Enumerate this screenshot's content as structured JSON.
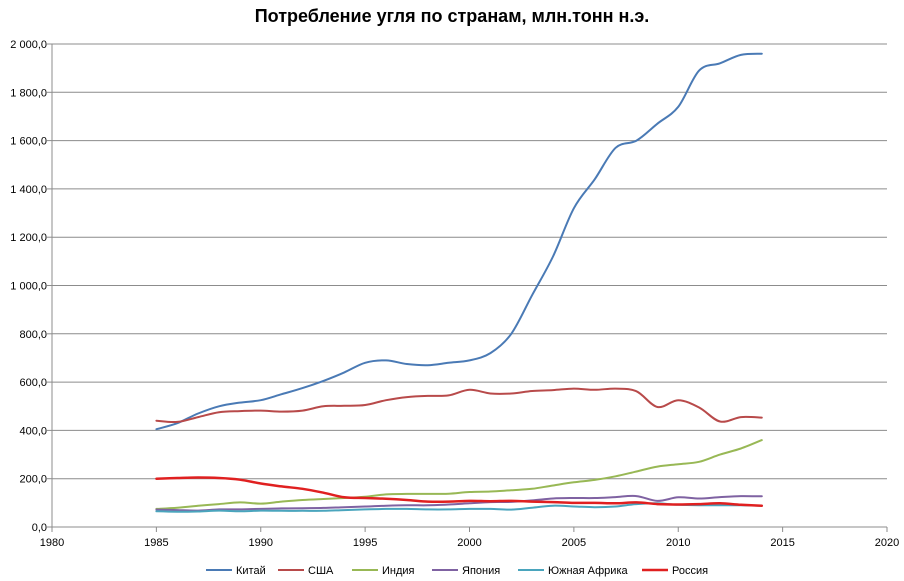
{
  "chart_data": {
    "type": "line",
    "title": "Потребление угля по странам, млн.тонн н.э.",
    "xlabel": "",
    "ylabel": "",
    "xlim": [
      1980,
      2020
    ],
    "ylim": [
      0,
      2000
    ],
    "x_ticks": [
      "1980",
      "1985",
      "1990",
      "1995",
      "2000",
      "2005",
      "2010",
      "2015",
      "2020"
    ],
    "y_ticks": [
      "0,0",
      "200,0",
      "400,0",
      "600,0",
      "800,0",
      "1 000,0",
      "1 200,0",
      "1 400,0",
      "1 600,0",
      "1 800,0",
      "2 000,0"
    ],
    "grid": "horizontal",
    "legend_position": "bottom",
    "x": [
      1985,
      1986,
      1987,
      1988,
      1989,
      1990,
      1991,
      1992,
      1993,
      1994,
      1995,
      1996,
      1997,
      1998,
      1999,
      2000,
      2001,
      2002,
      2003,
      2004,
      2005,
      2006,
      2007,
      2008,
      2009,
      2010,
      2011,
      2012,
      2013,
      2014
    ],
    "series": [
      {
        "name": "Китай",
        "color": "#4a7ab5",
        "width": 2,
        "values": [
          405,
          430,
          470,
          500,
          515,
          525,
          550,
          575,
          605,
          640,
          680,
          690,
          675,
          670,
          680,
          690,
          720,
          800,
          960,
          1120,
          1320,
          1440,
          1570,
          1600,
          1670,
          1740,
          1890,
          1920,
          1955,
          1960
        ]
      },
      {
        "name": "США",
        "color": "#b84a4a",
        "width": 2,
        "values": [
          440,
          435,
          455,
          475,
          480,
          482,
          478,
          482,
          500,
          502,
          505,
          525,
          538,
          543,
          545,
          568,
          553,
          553,
          563,
          567,
          573,
          568,
          573,
          562,
          497,
          525,
          495,
          437,
          455,
          453
        ]
      },
      {
        "name": "Индия",
        "color": "#98b855",
        "width": 2,
        "values": [
          75,
          80,
          88,
          95,
          102,
          97,
          105,
          112,
          116,
          120,
          125,
          135,
          137,
          137,
          138,
          145,
          147,
          152,
          158,
          172,
          185,
          195,
          210,
          230,
          250,
          260,
          270,
          300,
          325,
          360
        ]
      },
      {
        "name": "Япония",
        "color": "#7f62a2",
        "width": 2,
        "values": [
          72,
          70,
          68,
          73,
          73,
          75,
          77,
          78,
          79,
          82,
          85,
          88,
          90,
          90,
          93,
          98,
          103,
          104,
          110,
          118,
          120,
          120,
          124,
          128,
          108,
          123,
          118,
          124,
          128,
          127
        ]
      },
      {
        "name": "Южная Африка",
        "color": "#4aa5bd",
        "width": 2,
        "values": [
          65,
          63,
          64,
          68,
          65,
          68,
          67,
          67,
          67,
          70,
          73,
          75,
          75,
          73,
          73,
          75,
          75,
          72,
          80,
          88,
          85,
          82,
          85,
          95,
          98,
          92,
          90,
          90,
          90,
          88
        ]
      },
      {
        "name": "Россия",
        "color": "#e02020",
        "width": 2.5,
        "values": [
          200,
          203,
          205,
          203,
          196,
          180,
          168,
          158,
          142,
          123,
          120,
          117,
          112,
          105,
          105,
          108,
          107,
          108,
          105,
          103,
          100,
          100,
          98,
          102,
          95,
          93,
          95,
          98,
          92,
          88
        ]
      }
    ]
  }
}
